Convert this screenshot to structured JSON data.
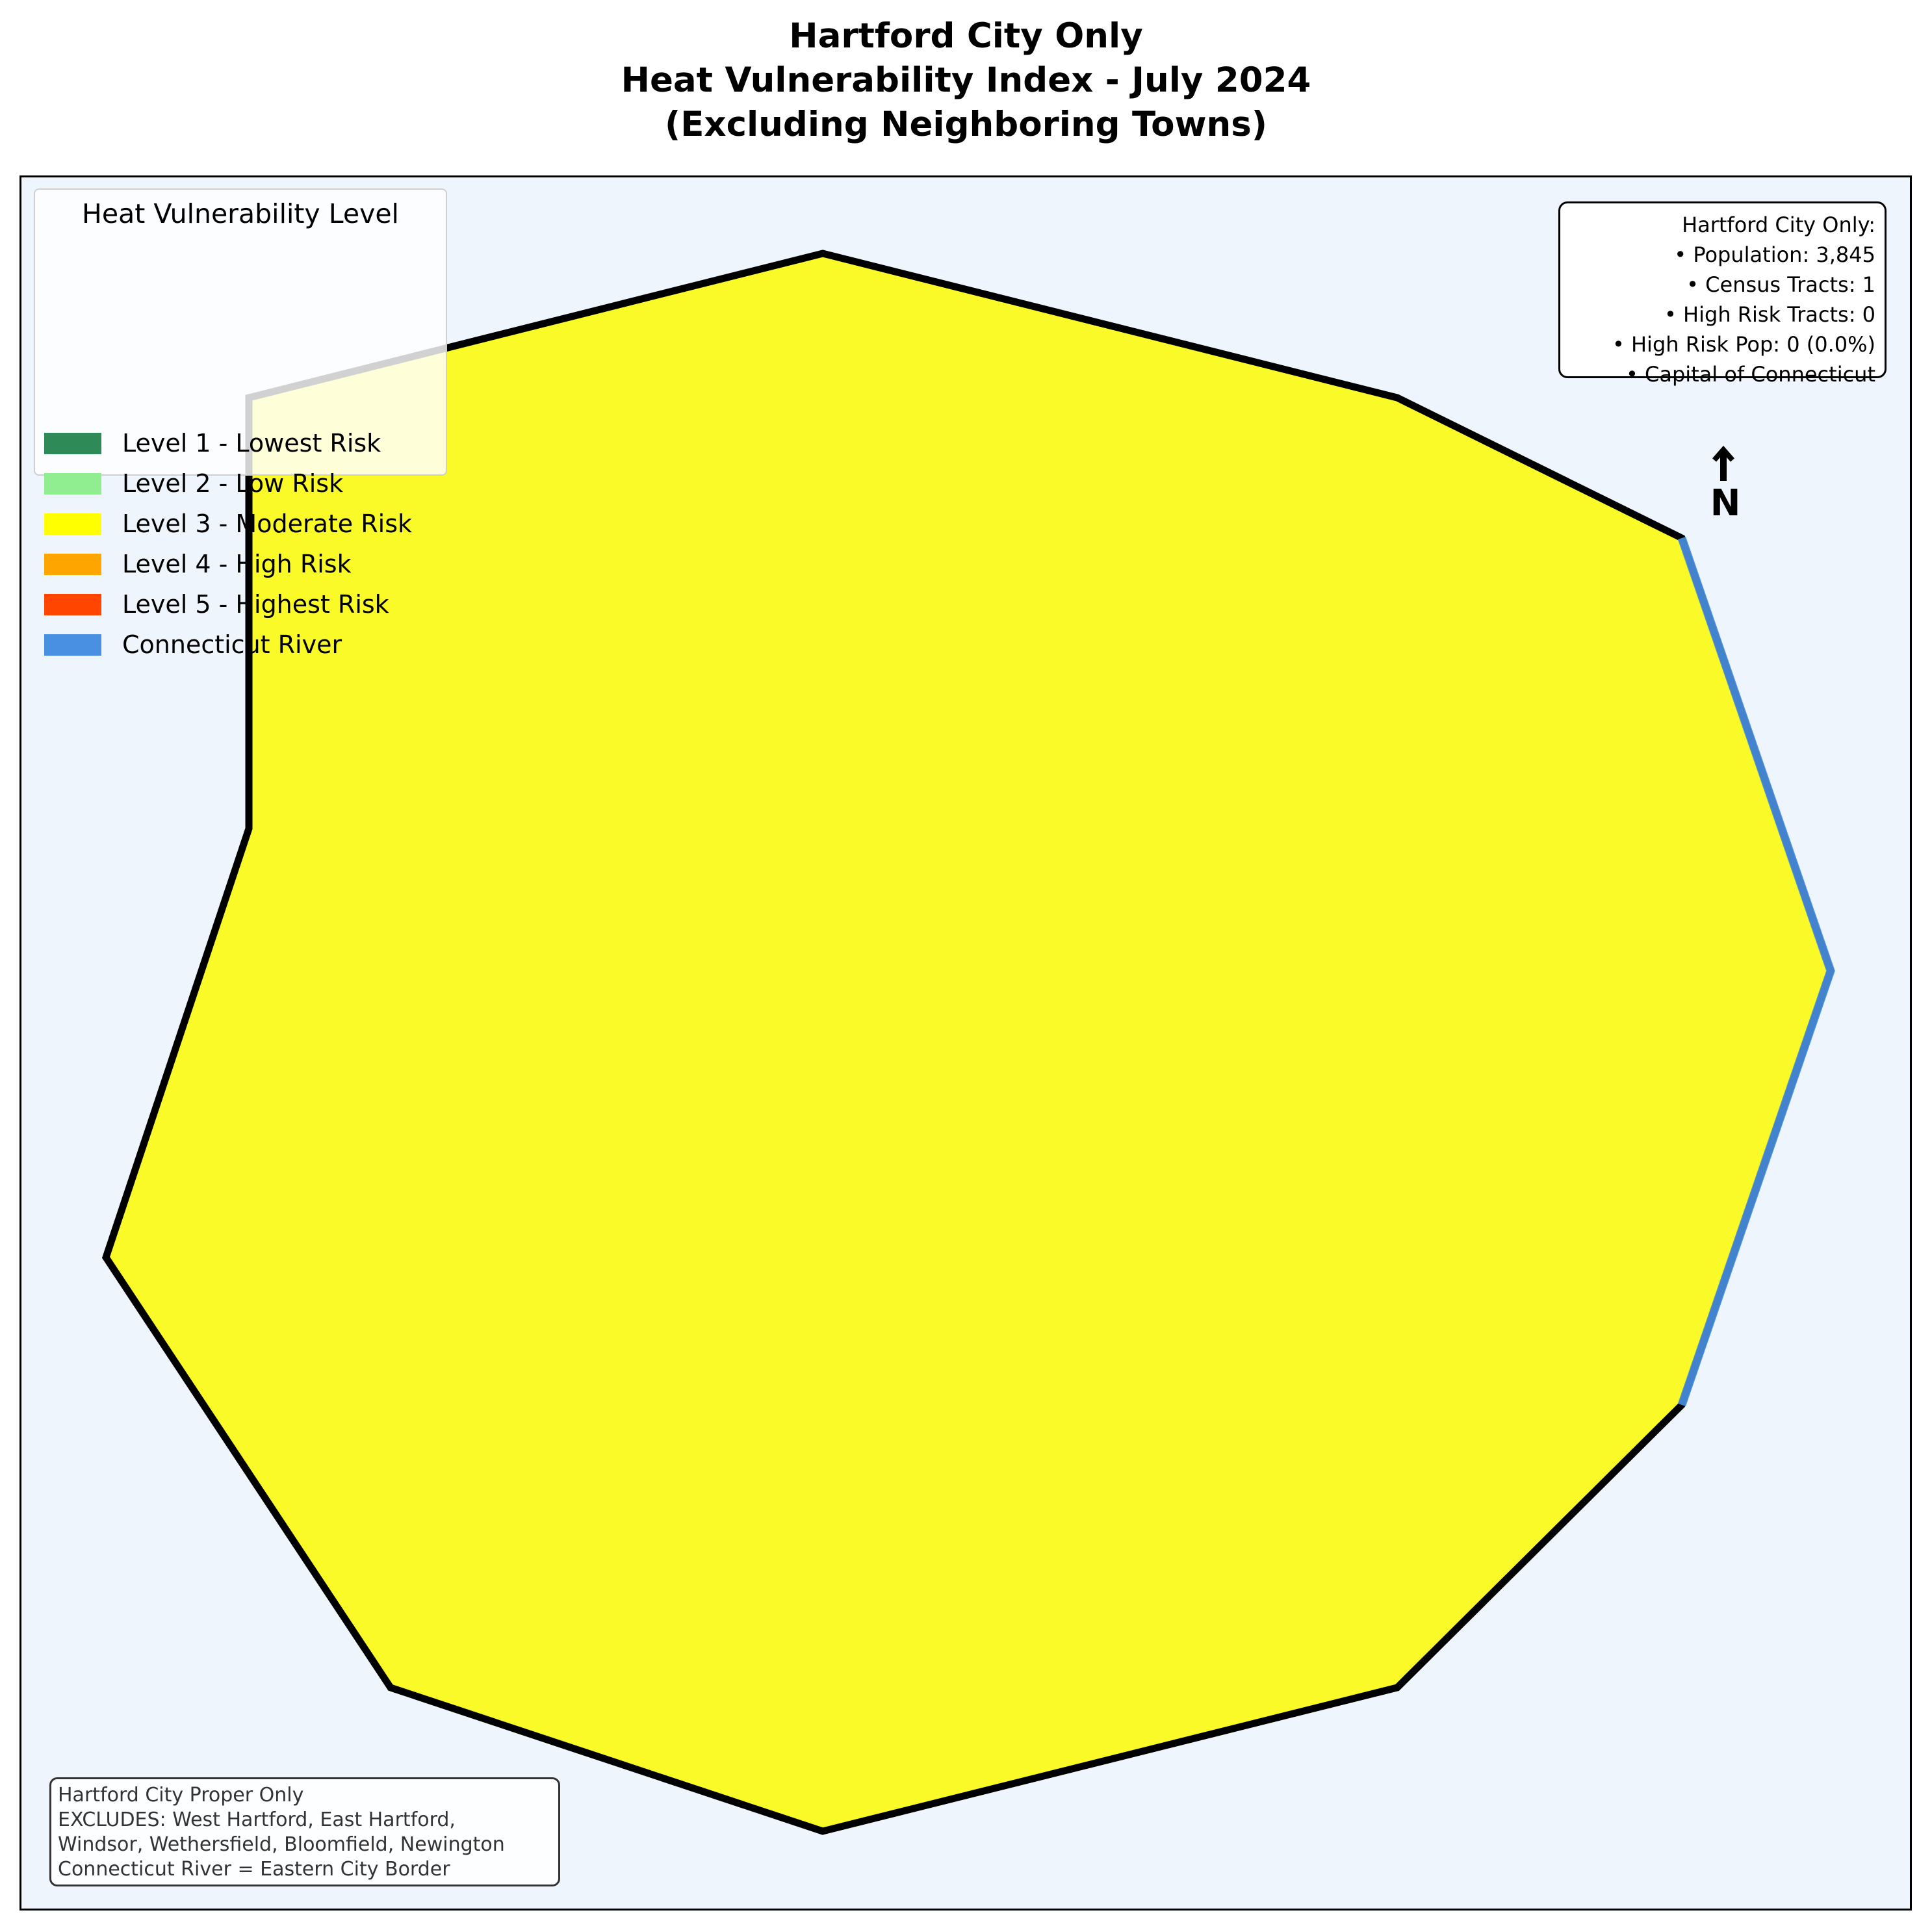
{
  "title": {
    "line1": "Hartford City Only",
    "line2": "Heat Vulnerability Index - July 2024",
    "line3": "(Excluding Neighboring Towns)"
  },
  "colors": {
    "map_background": "#eef5fc",
    "city_fill": "#fafa28",
    "border": "#000000",
    "river": "#4a90e2"
  },
  "legend": {
    "title": "Heat Vulnerability Level",
    "items": [
      {
        "label": "Level 1 - Lowest Risk",
        "color": "#2e8b57"
      },
      {
        "label": "Level 2 - Low Risk",
        "color": "#90ee90"
      },
      {
        "label": "Level 3 - Moderate Risk",
        "color": "#ffff00"
      },
      {
        "label": "Level 4 - High Risk",
        "color": "#ffa500"
      },
      {
        "label": "Level 5 - Highest Risk",
        "color": "#ff4500"
      },
      {
        "label": "Connecticut River",
        "color": "#4a90e2"
      }
    ]
  },
  "info": {
    "header": "Hartford City Only:",
    "population": "• Population: 3,845",
    "census_tracts": "• Census Tracts: 1",
    "high_risk_tracts": "• High Risk Tracts: 0",
    "high_risk_pop": "• High Risk Pop: 0 (0.0%)",
    "capital": "• Capital of Connecticut"
  },
  "north_arrow": {
    "label": "N",
    "icon": "north-arrow-icon"
  },
  "note": {
    "line1": "Hartford City Proper Only",
    "line2": "EXCLUDES: West Hartford, East Hartford,",
    "line3": "Windsor, Wethersfield, Bloomfield, Newington",
    "line4": "Connecticut River = Eastern City Border"
  },
  "city_region": {
    "name": "Hartford",
    "vulnerability_level": 3
  }
}
